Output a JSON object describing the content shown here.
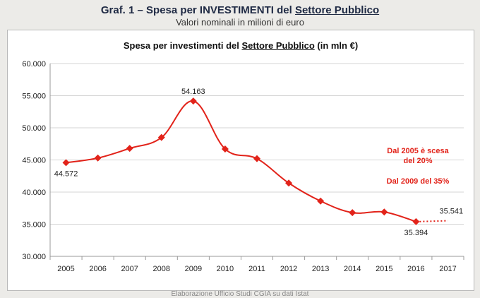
{
  "header": {
    "title_prefix": "Graf. 1 – Spesa per ",
    "title_bold": "INVESTIMENTI",
    "title_mid": " del ",
    "title_underlined": "Settore Pubblico",
    "subtitle": "Valori nominali in milioni di euro"
  },
  "annotations": {
    "line1a": "Dal 2005 è scesa",
    "line1b": "del 20%",
    "line2": "Dal 2009 del 35%"
  },
  "footer": "Elaborazione Ufficio Studi CGIA su dati Istat",
  "colors": {
    "series": "#e2231a",
    "grid": "#d4d4d4",
    "axis": "#999999"
  },
  "chart_data": {
    "type": "line",
    "title_prefix": "Spesa per investimenti del ",
    "title_underlined": "Settore Pubblico",
    "title_suffix": " (in mln €)",
    "categories": [
      "2005",
      "2006",
      "2007",
      "2008",
      "2009",
      "2010",
      "2011",
      "2012",
      "2013",
      "2014",
      "2015",
      "2016",
      "2017"
    ],
    "series": [
      {
        "name": "Spesa per investimenti",
        "values": [
          44572,
          45300,
          46800,
          48500,
          54163,
          46700,
          45200,
          41400,
          38600,
          36800,
          36900,
          35394,
          null
        ]
      }
    ],
    "projection": {
      "from": "2016",
      "to": "2017",
      "values": [
        35394,
        35541
      ],
      "style": "dotted"
    },
    "data_labels": [
      {
        "category": "2005",
        "text": "44.572",
        "pos": "below"
      },
      {
        "category": "2009",
        "text": "54.163",
        "pos": "above"
      },
      {
        "category": "2016",
        "text": "35.394",
        "pos": "below"
      },
      {
        "category": "2017",
        "text": "35.541",
        "pos": "above"
      }
    ],
    "ylim": [
      30000,
      60000
    ],
    "yticks": [
      30000,
      35000,
      40000,
      45000,
      50000,
      55000,
      60000
    ],
    "ytick_labels": [
      "30.000",
      "35.000",
      "40.000",
      "45.000",
      "50.000",
      "55.000",
      "60.000"
    ],
    "grid": true
  }
}
